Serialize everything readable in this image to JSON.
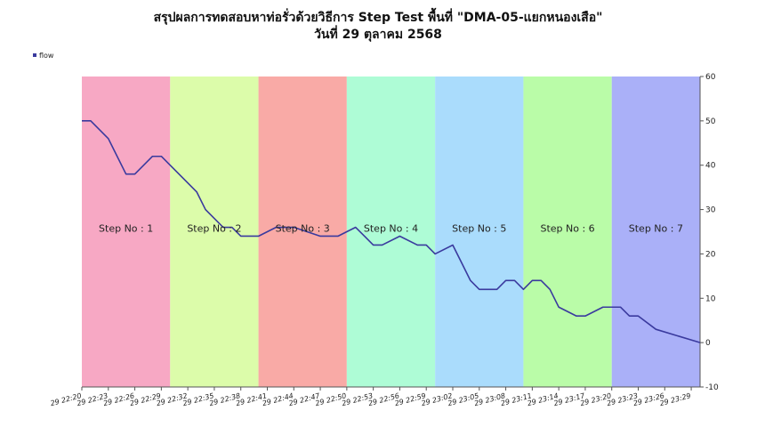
{
  "chart_data": {
    "type": "line",
    "title": "สรุปผลการทดสอบหาท่อรั่วด้วยวิธีการ Step Test พื้นที่ \"DMA-05-แยกหนองเสือ\"",
    "subtitle": "วันที่ 29 ตุลาคม 2568",
    "legend": {
      "position": "top-left",
      "entries": [
        "flow"
      ]
    },
    "ylim": [
      -10,
      60
    ],
    "yticks": [
      -10,
      0,
      10,
      20,
      30,
      40,
      50,
      60
    ],
    "y_axis_side": "right",
    "grid": false,
    "xlim_minutes": [
      0,
      70
    ],
    "x_tick_labels": [
      "29 22:20",
      "29 22:23",
      "29 22:26",
      "29 22:29",
      "29 22:32",
      "29 22:35",
      "29 22:38",
      "29 22:41",
      "29 22:44",
      "29 22:47",
      "29 22:50",
      "29 22:53",
      "29 22:56",
      "29 22:59",
      "29 23:02",
      "29 23:05",
      "29 23:08",
      "29 23:11",
      "29 23:14",
      "29 23:17",
      "29 23:20",
      "29 23:23",
      "29 23:26",
      "29 23:29"
    ],
    "steps": [
      {
        "label": "Step No : 1",
        "start": "22:20",
        "end": "22:30",
        "color": "#f7a8c4"
      },
      {
        "label": "Step No : 2",
        "start": "22:30",
        "end": "22:40",
        "color": "#dcfcaa"
      },
      {
        "label": "Step No : 3",
        "start": "22:40",
        "end": "22:50",
        "color": "#f9aaa6"
      },
      {
        "label": "Step No : 4",
        "start": "22:50",
        "end": "23:00",
        "color": "#aefcd6"
      },
      {
        "label": "Step No : 5",
        "start": "23:00",
        "end": "23:10",
        "color": "#aadcfc"
      },
      {
        "label": "Step No : 6",
        "start": "23:10",
        "end": "23:20",
        "color": "#bafca8"
      },
      {
        "label": "Step No : 7",
        "start": "23:20",
        "end": "23:30",
        "color": "#aab0f8"
      }
    ],
    "series": [
      {
        "name": "flow",
        "color": "#3a3a9e",
        "x": [
          "22:20",
          "22:21",
          "22:23",
          "22:25",
          "22:26",
          "22:28",
          "22:29",
          "22:31",
          "22:33",
          "22:34",
          "22:36",
          "22:37",
          "22:38",
          "22:40",
          "22:42",
          "22:44",
          "22:47",
          "22:49",
          "22:51",
          "22:52",
          "22:53",
          "22:54",
          "22:56",
          "22:58",
          "22:59",
          "23:00",
          "23:02",
          "23:03",
          "23:04",
          "23:05",
          "23:07",
          "23:08",
          "23:09",
          "23:10",
          "23:11",
          "23:12",
          "23:13",
          "23:14",
          "23:16",
          "23:17",
          "23:19",
          "23:20",
          "23:21",
          "23:22",
          "23:23",
          "23:25",
          "23:30"
        ],
        "y": [
          50,
          50,
          46,
          38,
          38,
          42,
          42,
          38,
          34,
          30,
          26,
          26,
          24,
          24,
          26,
          26,
          24,
          24,
          26,
          24,
          22,
          22,
          24,
          22,
          22,
          20,
          22,
          18,
          14,
          12,
          12,
          14,
          14,
          12,
          14,
          14,
          12,
          8,
          6,
          6,
          8,
          8,
          8,
          6,
          6,
          3,
          0
        ]
      }
    ]
  }
}
